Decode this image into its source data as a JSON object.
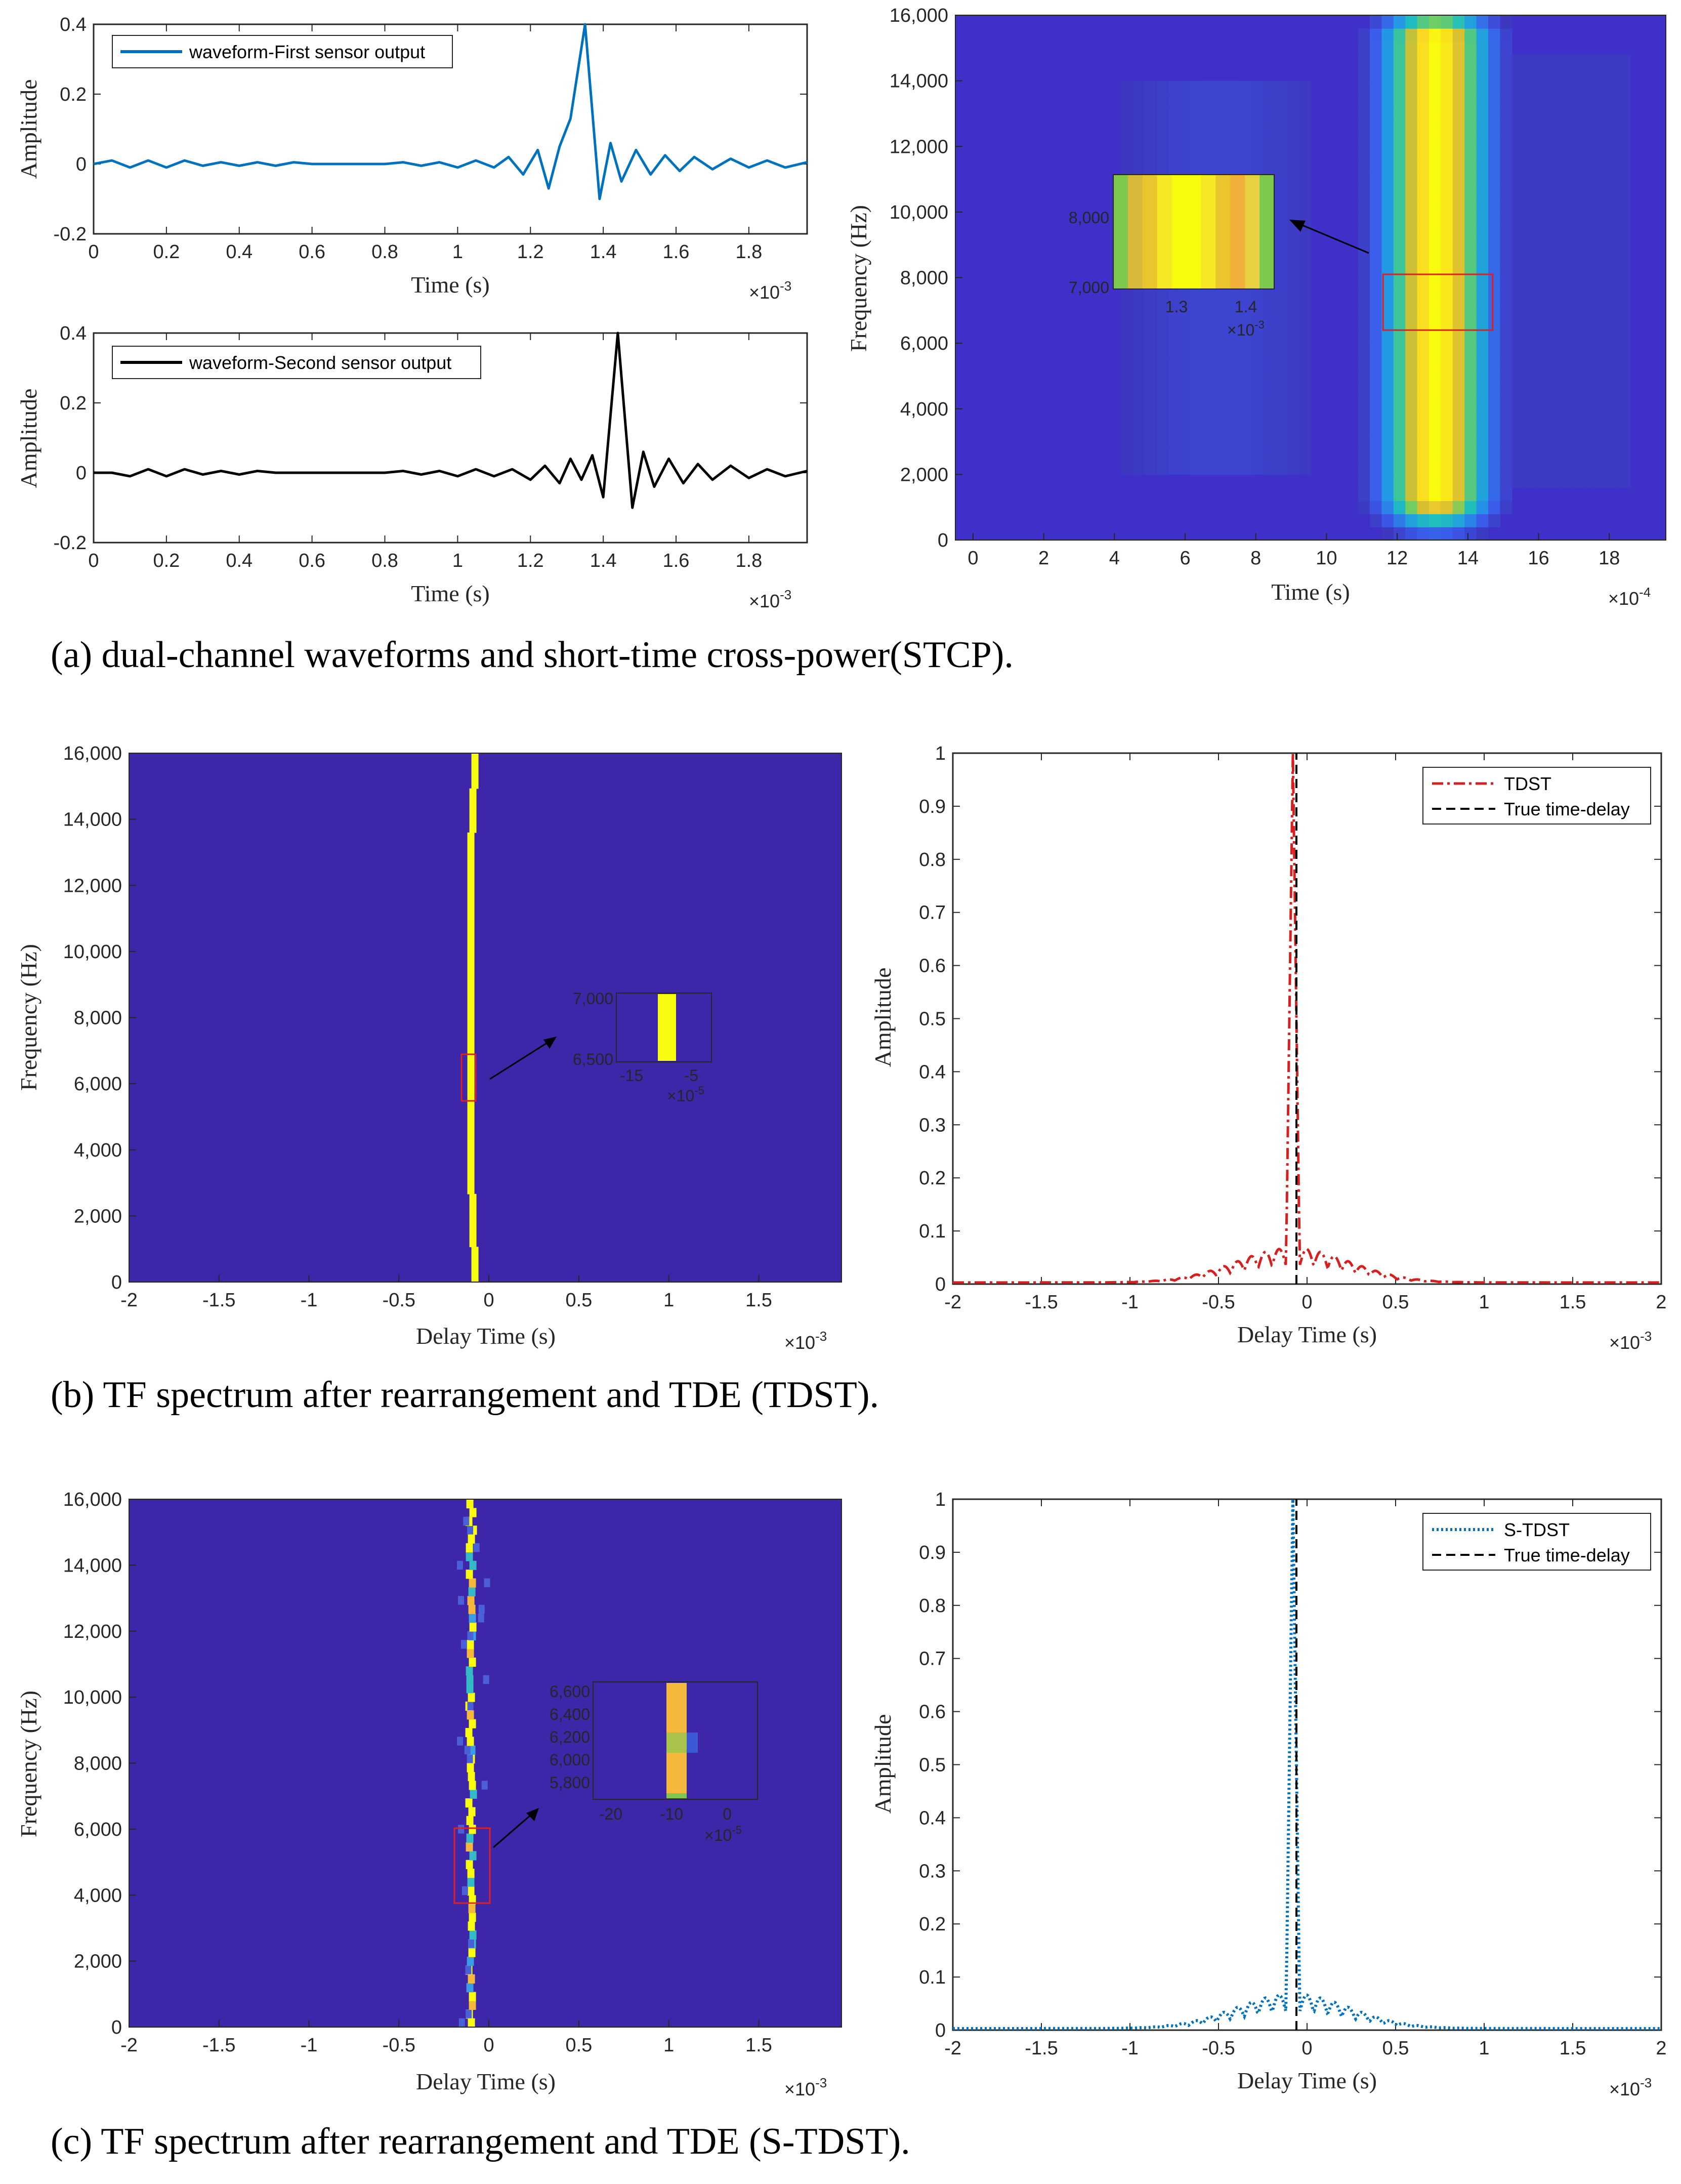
{
  "colors": {
    "blue_line": "#0072BD",
    "black_line": "#000000",
    "red_line": "#D62020",
    "heat_bg": "#3E26A8",
    "heat_yellow": "#F9FB0E",
    "inset_box": "#E02020"
  },
  "captions": {
    "a": "(a) dual-channel waveforms and short-time cross-power(STCP).",
    "b": "(b) TF spectrum after rearrangement and TDE (TDST).",
    "c": "(c) TF spectrum after rearrangement and TDE (S-TDST)."
  },
  "chart_data": [
    {
      "id": "wave1",
      "type": "line",
      "xlabel": "Time (s)",
      "ylabel": "Amplitude",
      "x_multiplier": "×10",
      "x_exponent": "-3",
      "xlim": [
        0,
        1.96
      ],
      "ylim": [
        -0.2,
        0.4
      ],
      "xticks": [
        "0",
        "0.2",
        "0.4",
        "0.6",
        "0.8",
        "1",
        "1.2",
        "1.4",
        "1.6",
        "1.8"
      ],
      "xtick_values": [
        0,
        0.2,
        0.4,
        0.6,
        0.8,
        1.0,
        1.2,
        1.4,
        1.6,
        1.8
      ],
      "yticks": [
        "0.4",
        "0.2",
        "0",
        "-0.2"
      ],
      "ytick_values": [
        0.4,
        0.2,
        0,
        -0.2
      ],
      "legend": "waveform-First sensor output",
      "series": [
        {
          "name": "waveform-First sensor output",
          "x": [
            0,
            0.05,
            0.1,
            0.15,
            0.2,
            0.25,
            0.3,
            0.35,
            0.4,
            0.45,
            0.5,
            0.55,
            0.6,
            0.65,
            0.7,
            0.75,
            0.8,
            0.85,
            0.9,
            0.95,
            1.0,
            1.05,
            1.1,
            1.14,
            1.18,
            1.22,
            1.25,
            1.28,
            1.31,
            1.35,
            1.39,
            1.42,
            1.45,
            1.49,
            1.53,
            1.57,
            1.61,
            1.65,
            1.7,
            1.75,
            1.8,
            1.85,
            1.9,
            1.96
          ],
          "y": [
            0,
            0.01,
            -0.01,
            0.01,
            -0.01,
            0.01,
            -0.005,
            0.005,
            -0.005,
            0.005,
            -0.005,
            0.005,
            0,
            0,
            0,
            0,
            0,
            0.005,
            -0.005,
            0.005,
            -0.01,
            0.01,
            -0.01,
            0.02,
            -0.03,
            0.04,
            -0.07,
            0.05,
            0.13,
            0.4,
            -0.1,
            0.06,
            -0.05,
            0.04,
            -0.03,
            0.025,
            -0.02,
            0.02,
            -0.015,
            0.015,
            -0.01,
            0.01,
            -0.01,
            0.005
          ]
        }
      ]
    },
    {
      "id": "wave2",
      "type": "line",
      "xlabel": "Time (s)",
      "ylabel": "Amplitude",
      "x_multiplier": "×10",
      "x_exponent": "-3",
      "xlim": [
        0,
        1.96
      ],
      "ylim": [
        -0.2,
        0.4
      ],
      "xticks": [
        "0",
        "0.2",
        "0.4",
        "0.6",
        "0.8",
        "1",
        "1.2",
        "1.4",
        "1.6",
        "1.8"
      ],
      "xtick_values": [
        0,
        0.2,
        0.4,
        0.6,
        0.8,
        1.0,
        1.2,
        1.4,
        1.6,
        1.8
      ],
      "yticks": [
        "0.4",
        "0.2",
        "0",
        "-0.2"
      ],
      "ytick_values": [
        0.4,
        0.2,
        0,
        -0.2
      ],
      "legend": "waveform-Second sensor output",
      "series": [
        {
          "name": "waveform-Second sensor output",
          "x": [
            0,
            0.05,
            0.1,
            0.15,
            0.2,
            0.25,
            0.3,
            0.35,
            0.4,
            0.45,
            0.5,
            0.55,
            0.6,
            0.65,
            0.7,
            0.75,
            0.8,
            0.85,
            0.9,
            0.95,
            1.0,
            1.05,
            1.1,
            1.15,
            1.2,
            1.24,
            1.28,
            1.31,
            1.34,
            1.37,
            1.4,
            1.44,
            1.48,
            1.51,
            1.54,
            1.58,
            1.62,
            1.66,
            1.7,
            1.75,
            1.8,
            1.85,
            1.9,
            1.96
          ],
          "y": [
            0,
            0,
            -0.01,
            0.01,
            -0.01,
            0.01,
            -0.005,
            0.005,
            -0.005,
            0.005,
            0,
            0,
            0,
            0,
            0,
            0,
            0,
            0.005,
            -0.005,
            0.005,
            -0.01,
            0.01,
            -0.01,
            0.01,
            -0.02,
            0.02,
            -0.03,
            0.04,
            -0.02,
            0.05,
            -0.07,
            0.4,
            -0.1,
            0.06,
            -0.04,
            0.04,
            -0.03,
            0.025,
            -0.02,
            0.02,
            -0.015,
            0.01,
            -0.01,
            0.005
          ]
        }
      ]
    },
    {
      "id": "stcp",
      "type": "heatmap",
      "xlabel": "Time (s)",
      "ylabel": "Frequency (Hz)",
      "x_multiplier": "×10",
      "x_exponent": "-4",
      "xlim": [
        -0.5,
        19.6
      ],
      "ylim": [
        0,
        16000
      ],
      "xticks": [
        "0",
        "2",
        "4",
        "6",
        "8",
        "10",
        "12",
        "14",
        "16",
        "18"
      ],
      "xtick_values": [
        0,
        2,
        4,
        6,
        8,
        10,
        12,
        14,
        16,
        18
      ],
      "yticks": [
        "16,000",
        "14,000",
        "12,000",
        "10,000",
        "8,000",
        "6,000",
        "4,000",
        "2,000",
        "0"
      ],
      "ytick_values": [
        16000,
        14000,
        12000,
        10000,
        8000,
        6000,
        4000,
        2000,
        0
      ],
      "band_center": 13.1,
      "band_halfwidth": 1.2,
      "band_fmin": 1400,
      "band_fmax": 15300,
      "inset": {
        "xticks": [
          "1.3",
          "1.4"
        ],
        "yticks": [
          "8,000",
          "7,000"
        ],
        "x_multiplier": "×10",
        "x_exponent": "-3",
        "zoom_x": [
          11.6,
          14.7
        ],
        "zoom_y": [
          6400,
          8100
        ]
      }
    },
    {
      "id": "tdst_tf",
      "type": "heatmap",
      "xlabel": "Delay Time (s)",
      "ylabel": "Frequency (Hz)",
      "x_multiplier": "×10",
      "x_exponent": "-3",
      "xlim": [
        -2,
        1.96
      ],
      "ylim": [
        0,
        16000
      ],
      "xticks": [
        "-2",
        "-1.5",
        "-1",
        "-0.5",
        "0",
        "0.5",
        "1",
        "1.5"
      ],
      "xtick_values": [
        -2,
        -1.5,
        -1,
        -0.5,
        0,
        0.5,
        1,
        1.5
      ],
      "yticks": [
        "16,000",
        "14,000",
        "12,000",
        "10,000",
        "8,000",
        "6,000",
        "4,000",
        "2,000",
        "0"
      ],
      "ytick_values": [
        16000,
        14000,
        12000,
        10000,
        8000,
        6000,
        4000,
        2000,
        0
      ],
      "line_delay": -0.1,
      "inset": {
        "xticks": [
          "-15",
          "-5"
        ],
        "yticks": [
          "7,000",
          "6,500"
        ],
        "x_multiplier": "×10",
        "x_exponent": "-5",
        "zoom_x": [
          -0.14,
          -0.04
        ],
        "zoom_y": [
          5600,
          6900
        ]
      }
    },
    {
      "id": "tdst_curve",
      "type": "line",
      "xlabel": "Delay Time (s)",
      "ylabel": "Amplitude",
      "x_multiplier": "×10",
      "x_exponent": "-3",
      "xlim": [
        -2,
        2
      ],
      "ylim": [
        0,
        1
      ],
      "xticks": [
        "-2",
        "-1.5",
        "-1",
        "-0.5",
        "0",
        "0.5",
        "1",
        "1.5",
        "2"
      ],
      "xtick_values": [
        -2,
        -1.5,
        -1,
        -0.5,
        0,
        0.5,
        1,
        1.5,
        2
      ],
      "yticks": [
        "1",
        "0.9",
        "0.8",
        "0.7",
        "0.6",
        "0.5",
        "0.4",
        "0.3",
        "0.2",
        "0.1",
        "0"
      ],
      "ytick_values": [
        1,
        0.9,
        0.8,
        0.7,
        0.6,
        0.5,
        0.4,
        0.3,
        0.2,
        0.1,
        0
      ],
      "series": [
        {
          "name": "TDST",
          "style": "dashdot",
          "peak_at": -0.08,
          "peak": 1.0
        },
        {
          "name": "True time-delay",
          "style": "dashed",
          "at": -0.06
        }
      ]
    },
    {
      "id": "stdst_tf",
      "type": "heatmap",
      "xlabel": "Delay Time (s)",
      "ylabel": "Frequency (Hz)",
      "x_multiplier": "×10",
      "x_exponent": "-3",
      "xlim": [
        -2,
        1.96
      ],
      "ylim": [
        0,
        16000
      ],
      "xticks": [
        "-2",
        "-1.5",
        "-1",
        "-0.5",
        "0",
        "0.5",
        "1",
        "1.5"
      ],
      "xtick_values": [
        -2,
        -1.5,
        -1,
        -0.5,
        0,
        0.5,
        1,
        1.5
      ],
      "yticks": [
        "16,000",
        "14,000",
        "12,000",
        "10,000",
        "8,000",
        "6,000",
        "4,000",
        "2,000",
        "0"
      ],
      "ytick_values": [
        16000,
        14000,
        12000,
        10000,
        8000,
        6000,
        4000,
        2000,
        0
      ],
      "line_delay": -0.1,
      "inset": {
        "xticks": [
          "-20",
          "-10",
          "0"
        ],
        "yticks": [
          "6,600",
          "6,400",
          "6,200",
          "6,000",
          "5,800"
        ],
        "x_multiplier": "×10",
        "x_exponent": "-5",
        "zoom_x": [
          -0.2,
          -0.02
        ],
        "zoom_y": [
          4000,
          6000
        ]
      }
    },
    {
      "id": "stdst_curve",
      "type": "line",
      "xlabel": "Delay Time (s)",
      "ylabel": "Amplitude",
      "x_multiplier": "×10",
      "x_exponent": "-3",
      "xlim": [
        -2,
        2
      ],
      "ylim": [
        0,
        1
      ],
      "xticks": [
        "-2",
        "-1.5",
        "-1",
        "-0.5",
        "0",
        "0.5",
        "1",
        "1.5",
        "2"
      ],
      "xtick_values": [
        -2,
        -1.5,
        -1,
        -0.5,
        0,
        0.5,
        1,
        1.5,
        2
      ],
      "yticks": [
        "1",
        "0.9",
        "0.8",
        "0.7",
        "0.6",
        "0.5",
        "0.4",
        "0.3",
        "0.2",
        "0.1",
        "0"
      ],
      "ytick_values": [
        1,
        0.9,
        0.8,
        0.7,
        0.6,
        0.5,
        0.4,
        0.3,
        0.2,
        0.1,
        0
      ],
      "series": [
        {
          "name": "S-TDST",
          "style": "dotted",
          "peak_at": -0.08,
          "peak": 1.0
        },
        {
          "name": "True time-delay",
          "style": "dashed",
          "at": -0.06
        }
      ]
    }
  ]
}
